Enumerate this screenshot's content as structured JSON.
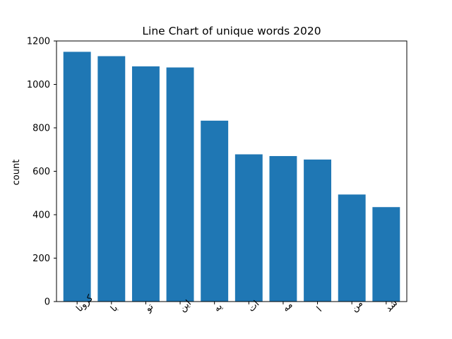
{
  "chart_data": {
    "type": "bar",
    "title": "Line Chart of unique words 2020",
    "xlabel": "",
    "ylabel": "count",
    "categories": [
      "کرونا",
      "با",
      "تو",
      "این",
      "یه",
      "ات",
      "مه",
      "ا",
      "من",
      "شد"
    ],
    "values": [
      1150,
      1130,
      1083,
      1078,
      833,
      678,
      670,
      654,
      493,
      435
    ],
    "ylim": [
      0,
      1200
    ],
    "yticks": [
      0,
      200,
      400,
      600,
      800,
      1000,
      1200
    ],
    "grid": false,
    "bar_color": "#1f77b4"
  }
}
